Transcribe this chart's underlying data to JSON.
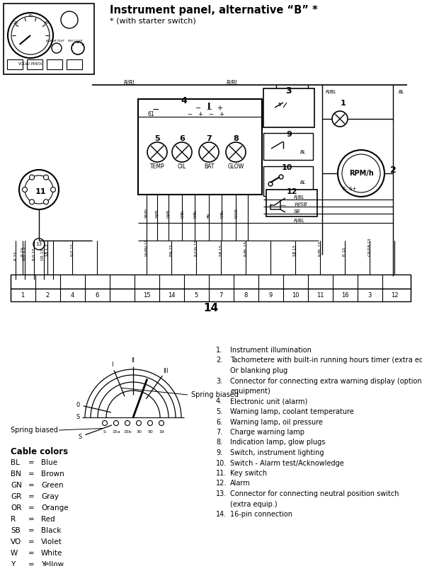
{
  "title": "Instrument panel, alternative “B” *",
  "subtitle": "* (with starter switch)",
  "bg_color": "#ffffff",
  "line_color": "#000000",
  "fig_width": 5.96,
  "fig_height": 8.0,
  "dpi": 100,
  "numbered_items": [
    [
      "1.",
      "Instrument illumination"
    ],
    [
      "2.",
      "Tachometere with built-in running hours timer (extra equip.)."
    ],
    [
      "",
      "Or blanking plug"
    ],
    [
      "3.",
      "Connector for connecting extra warning display (optional"
    ],
    [
      "",
      "equipment)"
    ],
    [
      "4.",
      "Electronic unit (alarm)"
    ],
    [
      "5.",
      "Warning lamp, coolant temperature"
    ],
    [
      "6.",
      "Warning lamp, oil pressure"
    ],
    [
      "7.",
      "Charge warning lamp"
    ],
    [
      "8.",
      "Indication lamp, glow plugs"
    ],
    [
      "9.",
      "Switch, instrument lighting"
    ],
    [
      "10.",
      "Switch - Alarm test/Acknowledge"
    ],
    [
      "11.",
      "Key switch"
    ],
    [
      "12.",
      "Alarm"
    ],
    [
      "13.",
      "Connector for connecting neutral position switch"
    ],
    [
      "",
      "(extra equip.)"
    ],
    [
      "14.",
      "16-pin connection"
    ]
  ],
  "cable_colors": [
    [
      "BL",
      "Blue"
    ],
    [
      "BN",
      "Brown"
    ],
    [
      "GN",
      "Green"
    ],
    [
      "GR",
      "Gray"
    ],
    [
      "OR",
      "Orange"
    ],
    [
      "R",
      "Red"
    ],
    [
      "SB",
      "Black"
    ],
    [
      "VO",
      "Violet"
    ],
    [
      "W",
      "White"
    ],
    [
      "Y",
      "Yellow"
    ]
  ]
}
